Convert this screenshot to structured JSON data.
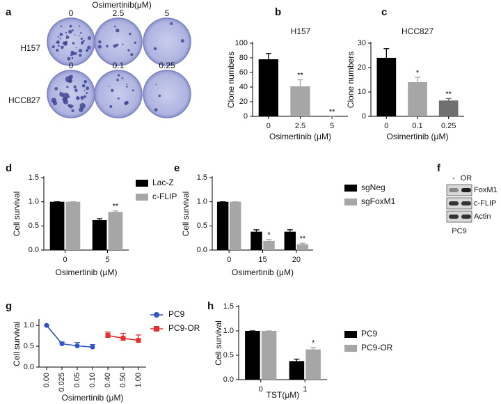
{
  "figure_a": {
    "panel_label": "a",
    "title": "Osimertinib(μM)",
    "rows": [
      {
        "name": "H157",
        "doses": [
          "0",
          "2.5",
          "5"
        ]
      },
      {
        "name": "HCC827",
        "doses": [
          "0",
          "0.1",
          "0.25"
        ]
      }
    ]
  },
  "figure_f": {
    "panel_label": "f",
    "lanes": [
      "-",
      "OR"
    ],
    "bands": [
      "FoxM1",
      "c-FLIP",
      "Actin"
    ],
    "cell_line": "PC9"
  },
  "chart_data": [
    {
      "type": "bar",
      "panel_label": "b",
      "title": "H157",
      "xlabel": "Osimertinib (μM)",
      "ylabel": "Clone numbers",
      "categories": [
        "0",
        "2.5",
        "5"
      ],
      "values": [
        78,
        41,
        0
      ],
      "errors": [
        8,
        9,
        0
      ],
      "annotations": [
        null,
        "**",
        "**"
      ],
      "colors": [
        "#000000",
        "#a6a6a6",
        "#707070"
      ],
      "ylim": [
        0,
        100
      ],
      "yticks": [
        0,
        20,
        40,
        60,
        80,
        100
      ]
    },
    {
      "type": "bar",
      "panel_label": "c",
      "title": "HCC827",
      "xlabel": "Osimertinib (μM)",
      "ylabel": "Clone numbers",
      "categories": [
        "0",
        "0.1",
        "0.25"
      ],
      "values": [
        24,
        14,
        6.5
      ],
      "errors": [
        3.8,
        2,
        0.8
      ],
      "annotations": [
        null,
        "*",
        "**"
      ],
      "colors": [
        "#000000",
        "#a6a6a6",
        "#707070"
      ],
      "ylim": [
        0,
        30
      ],
      "yticks": [
        0,
        10,
        20,
        30
      ]
    },
    {
      "type": "bar",
      "panel_label": "d",
      "xlabel": "Osimertinib (μM)",
      "ylabel": "Cell survival",
      "categories": [
        "0",
        "5"
      ],
      "series": [
        {
          "name": "Lac-Z",
          "color": "#000000",
          "values": [
            1.0,
            0.62
          ],
          "errors": [
            0,
            0.03
          ],
          "annotations": [
            null,
            null
          ]
        },
        {
          "name": "c-FLIP",
          "color": "#a6a6a6",
          "values": [
            1.0,
            0.79
          ],
          "errors": [
            0,
            0.02
          ],
          "annotations": [
            null,
            "**"
          ]
        }
      ],
      "ylim": [
        0,
        1.5
      ],
      "yticks": [
        {
          "value": 0,
          "label": "0.0"
        },
        0.5,
        {
          "value": 1,
          "label": "1.0"
        },
        1.5
      ]
    },
    {
      "type": "bar",
      "panel_label": "e",
      "xlabel": "Osimertinib (μM)",
      "ylabel": "Cell survival",
      "categories": [
        "0",
        "15",
        "20"
      ],
      "series": [
        {
          "name": "sgNeg",
          "color": "#000000",
          "values": [
            1.0,
            0.38,
            0.38
          ],
          "errors": [
            0,
            0.04,
            0.04
          ],
          "annotations": [
            null,
            null,
            null
          ]
        },
        {
          "name": "sgFoxM1",
          "color": "#a6a6a6",
          "values": [
            1.0,
            0.19,
            0.12
          ],
          "errors": [
            0,
            0.03,
            0.02
          ],
          "annotations": [
            null,
            "*",
            "**"
          ]
        }
      ],
      "ylim": [
        0,
        1.5
      ],
      "yticks": [
        {
          "value": 0,
          "label": "0.0"
        },
        0.5,
        {
          "value": 1,
          "label": "1.0"
        },
        1.5
      ]
    },
    {
      "type": "line",
      "panel_label": "g",
      "xlabel": "Osimertinib (μM)",
      "ylabel": "Cell survival",
      "categories": [
        "0.00",
        "0.025",
        "0.05",
        "0.10",
        "0.40",
        "0.50",
        "1.00"
      ],
      "series": [
        {
          "name": "PC9",
          "color": "#2f55c8",
          "marker": "circle",
          "values": [
            1.0,
            0.56,
            0.51,
            0.48,
            null,
            null,
            null
          ],
          "errors": [
            0,
            0.04,
            0.08,
            0.06,
            null,
            null,
            null
          ]
        },
        {
          "name": "PC9-OR",
          "color": "#e03030",
          "marker": "square",
          "values": [
            null,
            null,
            null,
            null,
            0.76,
            0.69,
            0.64
          ],
          "errors": [
            null,
            null,
            null,
            null,
            0.08,
            0.12,
            0.13
          ]
        }
      ],
      "ylim": [
        0,
        1.12
      ],
      "yticks": [
        {
          "value": 0,
          "label": "0.0"
        },
        0.5,
        {
          "value": 1,
          "label": "1.0"
        }
      ]
    },
    {
      "type": "bar",
      "panel_label": "h",
      "xlabel": "TST(μM)",
      "ylabel": "Cell survival",
      "categories": [
        "0",
        "1"
      ],
      "series": [
        {
          "name": "PC9",
          "color": "#000000",
          "values": [
            1.0,
            0.38
          ],
          "errors": [
            0,
            0.04
          ],
          "annotations": [
            null,
            null
          ]
        },
        {
          "name": "PC9-OR",
          "color": "#a6a6a6",
          "values": [
            1.0,
            0.62
          ],
          "errors": [
            0,
            0.04
          ],
          "annotations": [
            null,
            "*"
          ]
        }
      ],
      "ylim": [
        0,
        1.5
      ],
      "yticks": [
        {
          "value": 0,
          "label": "0.0"
        },
        0.5,
        {
          "value": 1,
          "label": "1.0"
        },
        1.5
      ]
    }
  ]
}
